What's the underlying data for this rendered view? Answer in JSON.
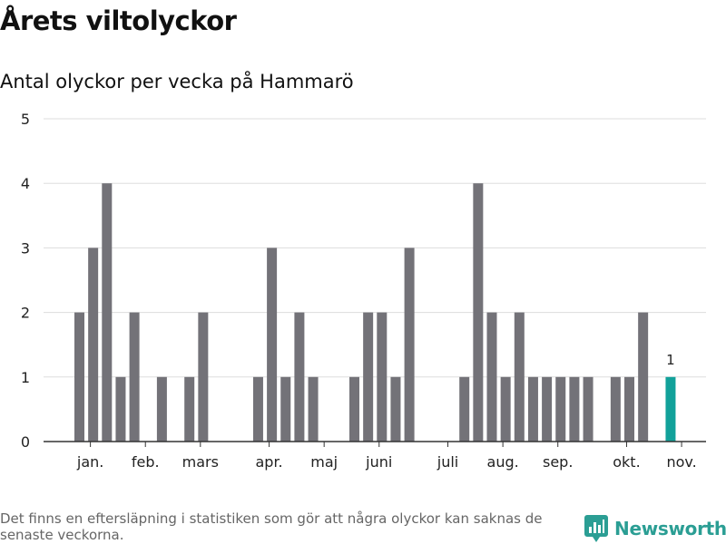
{
  "header": {
    "title": "Årets viltolyckor",
    "subtitle": "Antal olyckor per vecka på Hammarö"
  },
  "footer": {
    "note": "Det finns en eftersläpning i statistiken som gör att några olyckor kan saknas de senaste veckorna.",
    "brand": "Newsworthy"
  },
  "colors": {
    "bar": "#737278",
    "highlight": "#12a19a",
    "brand": "#2b9e94",
    "grid": "#dddddd",
    "axis": "#333333"
  },
  "chart_data": {
    "type": "bar",
    "x": [
      1,
      2,
      3,
      4,
      5,
      6,
      7,
      8,
      9,
      10,
      11,
      12,
      13,
      14,
      15,
      16,
      17,
      18,
      19,
      20,
      21,
      22,
      23,
      24,
      25,
      26,
      27,
      28,
      29,
      30,
      31,
      32,
      33,
      34,
      35,
      36,
      37,
      38,
      39,
      40,
      41,
      42,
      43,
      44
    ],
    "values": [
      2,
      3,
      4,
      1,
      2,
      0,
      1,
      0,
      1,
      2,
      0,
      0,
      0,
      1,
      3,
      1,
      2,
      1,
      0,
      0,
      1,
      2,
      2,
      1,
      3,
      0,
      0,
      0,
      1,
      4,
      2,
      1,
      2,
      1,
      1,
      1,
      1,
      1,
      0,
      1,
      1,
      2,
      0,
      1
    ],
    "highlight_index": 43,
    "data_labels": [
      {
        "index": 43,
        "text": "1"
      }
    ],
    "ylim": [
      0,
      5
    ],
    "yticks": [
      0,
      1,
      2,
      3,
      4,
      5
    ],
    "month_ticks": [
      {
        "label": "jan.",
        "x": 1.8
      },
      {
        "label": "feb.",
        "x": 5.8
      },
      {
        "label": "mars",
        "x": 9.8
      },
      {
        "label": "apr.",
        "x": 14.8
      },
      {
        "label": "maj",
        "x": 18.8
      },
      {
        "label": "juni",
        "x": 22.8
      },
      {
        "label": "juli",
        "x": 27.8
      },
      {
        "label": "aug.",
        "x": 31.8
      },
      {
        "label": "sep.",
        "x": 35.8
      },
      {
        "label": "okt.",
        "x": 40.8
      },
      {
        "label": "nov.",
        "x": 44.8
      }
    ],
    "grid": true,
    "legend": "none"
  }
}
